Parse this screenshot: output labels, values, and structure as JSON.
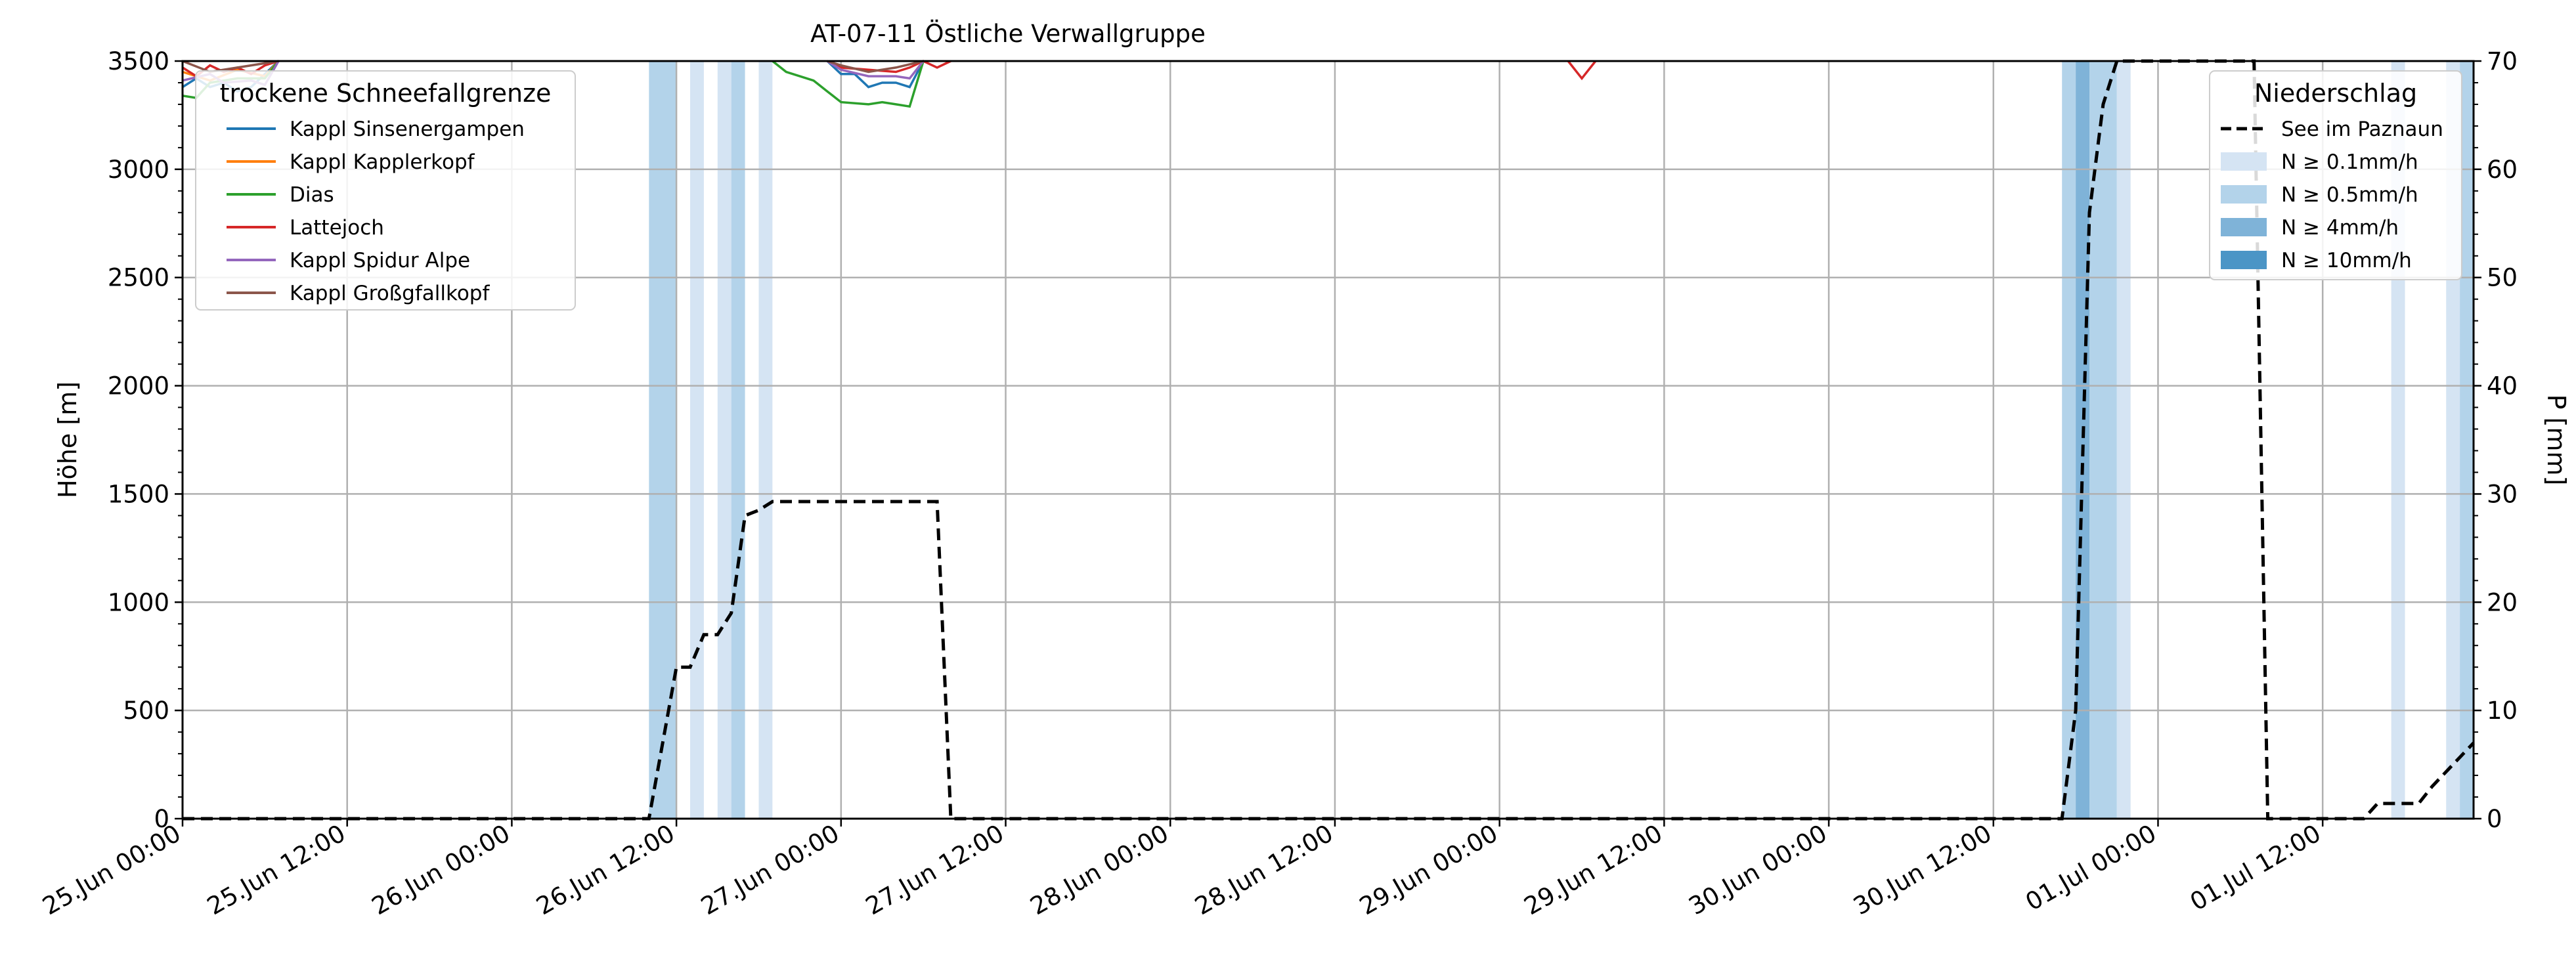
{
  "chart_data": {
    "type": "line",
    "title": "AT-07-11 Östliche Verwallgruppe",
    "ylabel_left": "Höhe [m]",
    "ylabel_right": "P [mm]",
    "ylim_left": [
      0,
      3500
    ],
    "ylim_right": [
      0,
      70
    ],
    "yticks_left": [
      "0",
      "500",
      "1000",
      "1500",
      "2000",
      "2500",
      "3000",
      "3500"
    ],
    "yticks_right": [
      "0",
      "10",
      "20",
      "30",
      "40",
      "50",
      "60",
      "70"
    ],
    "x_range_hours": [
      0,
      167
    ],
    "xticks": [
      "25.Jun 00:00",
      "25.Jun 12:00",
      "26.Jun 00:00",
      "26.Jun 12:00",
      "27.Jun 00:00",
      "27.Jun 12:00",
      "28.Jun 00:00",
      "28.Jun 12:00",
      "29.Jun 00:00",
      "29.Jun 12:00",
      "30.Jun 00:00",
      "30.Jun 12:00",
      "01.Jul 00:00",
      "01.Jul 12:00"
    ],
    "grid": true,
    "legend_left": {
      "title": "trockene Schneefallgrenze",
      "placement": "top-left",
      "entries": [
        {
          "name": "Kappl Sinsenergampen",
          "color": "#1f77b4"
        },
        {
          "name": "Kappl Kapplerkopf",
          "color": "#ff7f0e"
        },
        {
          "name": "Dias",
          "color": "#2ca02c"
        },
        {
          "name": "Lattejoch",
          "color": "#d62728"
        },
        {
          "name": "Kappl Spidur Alpe",
          "color": "#9467bd"
        },
        {
          "name": "Kappl Großgfallkopf",
          "color": "#8c564b"
        }
      ]
    },
    "legend_right": {
      "title": "Niederschlag",
      "placement": "top-right",
      "entries": [
        {
          "name": "See im Paznaun",
          "kind": "dashed-line",
          "color": "#000000"
        },
        {
          "name": "N ≥ 0.1mm/h",
          "kind": "patch",
          "color": "#d5e4f3"
        },
        {
          "name": "N ≥ 0.5mm/h",
          "kind": "patch",
          "color": "#b3d3ea"
        },
        {
          "name": "N ≥ 4mm/h",
          "kind": "patch",
          "color": "#7fb3d8"
        },
        {
          "name": "N ≥ 10mm/h",
          "kind": "patch",
          "color": "#4b95c6"
        }
      ]
    },
    "precip_bands": [
      {
        "start": 34,
        "end": 36,
        "level": "N ≥ 0.5mm/h"
      },
      {
        "start": 37,
        "end": 38,
        "level": "N ≥ 0.1mm/h"
      },
      {
        "start": 39,
        "end": 40,
        "level": "N ≥ 0.1mm/h"
      },
      {
        "start": 40,
        "end": 41,
        "level": "N ≥ 0.5mm/h"
      },
      {
        "start": 42,
        "end": 43,
        "level": "N ≥ 0.1mm/h"
      },
      {
        "start": 137,
        "end": 138,
        "level": "N ≥ 0.5mm/h"
      },
      {
        "start": 138,
        "end": 139,
        "level": "N ≥ 4mm/h"
      },
      {
        "start": 139,
        "end": 141,
        "level": "N ≥ 0.5mm/h"
      },
      {
        "start": 141,
        "end": 142,
        "level": "N ≥ 0.1mm/h"
      },
      {
        "start": 161,
        "end": 162,
        "level": "N ≥ 0.1mm/h"
      },
      {
        "start": 165,
        "end": 166,
        "level": "N ≥ 0.1mm/h"
      },
      {
        "start": 166,
        "end": 167,
        "level": "N ≥ 0.5mm/h"
      }
    ],
    "precip_series": {
      "name": "See im Paznaun",
      "axis": "right",
      "points": [
        [
          0,
          0
        ],
        [
          34,
          0
        ],
        [
          36,
          14
        ],
        [
          37,
          14
        ],
        [
          38,
          17
        ],
        [
          39,
          17
        ],
        [
          40,
          19
        ],
        [
          41,
          28
        ],
        [
          42,
          28.5
        ],
        [
          43,
          29.3
        ],
        [
          55,
          29.3
        ],
        [
          56,
          0
        ],
        [
          137,
          0
        ],
        [
          138,
          10
        ],
        [
          139,
          56
        ],
        [
          140,
          66
        ],
        [
          141,
          70
        ],
        [
          151,
          70
        ],
        [
          152,
          0
        ],
        [
          159,
          0
        ],
        [
          160,
          1.4
        ],
        [
          163,
          1.4
        ],
        [
          164,
          3
        ],
        [
          167,
          7
        ]
      ]
    },
    "snowline_series": [
      {
        "name": "Kappl Sinsenergampen",
        "color": "#1f77b4",
        "segments": [
          [
            [
              0,
              3380
            ],
            [
              1,
              3420
            ],
            [
              2,
              3380
            ],
            [
              3,
              3400
            ],
            [
              4,
              3360
            ],
            [
              5,
              3380
            ],
            [
              6,
              3440
            ],
            [
              7,
              3500
            ]
          ],
          [
            [
              47,
              3500
            ],
            [
              48,
              3440
            ],
            [
              49,
              3440
            ],
            [
              50,
              3380
            ],
            [
              51,
              3400
            ],
            [
              52,
              3400
            ],
            [
              53,
              3380
            ],
            [
              54,
              3500
            ]
          ]
        ]
      },
      {
        "name": "Kappl Kapplerkopf",
        "color": "#ff7f0e",
        "segments": [
          [
            [
              0,
              3450
            ],
            [
              2,
              3410
            ],
            [
              4,
              3460
            ],
            [
              6,
              3430
            ],
            [
              7,
              3500
            ]
          ]
        ]
      },
      {
        "name": "Dias",
        "color": "#2ca02c",
        "segments": [
          [
            [
              0,
              3340
            ],
            [
              1,
              3330
            ],
            [
              2,
              3400
            ],
            [
              4,
              3420
            ],
            [
              6,
              3420
            ],
            [
              7,
              3500
            ]
          ],
          [
            [
              43,
              3500
            ],
            [
              44,
              3450
            ],
            [
              46,
              3410
            ],
            [
              47,
              3360
            ],
            [
              48,
              3310
            ],
            [
              50,
              3300
            ],
            [
              51,
              3310
            ],
            [
              52,
              3300
            ],
            [
              53,
              3290
            ],
            [
              54,
              3500
            ]
          ]
        ]
      },
      {
        "name": "Lattejoch",
        "color": "#d62728",
        "segments": [
          [
            [
              0,
              3470
            ],
            [
              1,
              3430
            ],
            [
              2,
              3480
            ],
            [
              3,
              3450
            ],
            [
              4,
              3470
            ],
            [
              5,
              3440
            ],
            [
              6,
              3480
            ],
            [
              7,
              3500
            ]
          ],
          [
            [
              47,
              3500
            ],
            [
              48,
              3470
            ],
            [
              50,
              3460
            ],
            [
              52,
              3450
            ],
            [
              53,
              3470
            ],
            [
              54,
              3500
            ],
            [
              55,
              3470
            ],
            [
              56,
              3500
            ]
          ],
          [
            [
              101,
              3500
            ],
            [
              102,
              3420
            ],
            [
              103,
              3500
            ]
          ]
        ]
      },
      {
        "name": "Kappl Spidur Alpe",
        "color": "#9467bd",
        "segments": [
          [
            [
              0,
              3410
            ],
            [
              2,
              3440
            ],
            [
              3,
              3400
            ],
            [
              5,
              3410
            ],
            [
              6,
              3390
            ],
            [
              7,
              3500
            ]
          ],
          [
            [
              47,
              3500
            ],
            [
              48,
              3460
            ],
            [
              50,
              3430
            ],
            [
              52,
              3430
            ],
            [
              53,
              3420
            ],
            [
              54,
              3500
            ]
          ]
        ]
      },
      {
        "name": "Kappl Großgfallkopf",
        "color": "#8c564b",
        "segments": [
          [
            [
              0,
              3500
            ],
            [
              2,
              3450
            ],
            [
              4,
              3470
            ],
            [
              7,
              3500
            ]
          ],
          [
            [
              47,
              3500
            ],
            [
              48,
              3480
            ],
            [
              50,
              3450
            ],
            [
              52,
              3470
            ],
            [
              54,
              3500
            ]
          ]
        ]
      }
    ]
  }
}
